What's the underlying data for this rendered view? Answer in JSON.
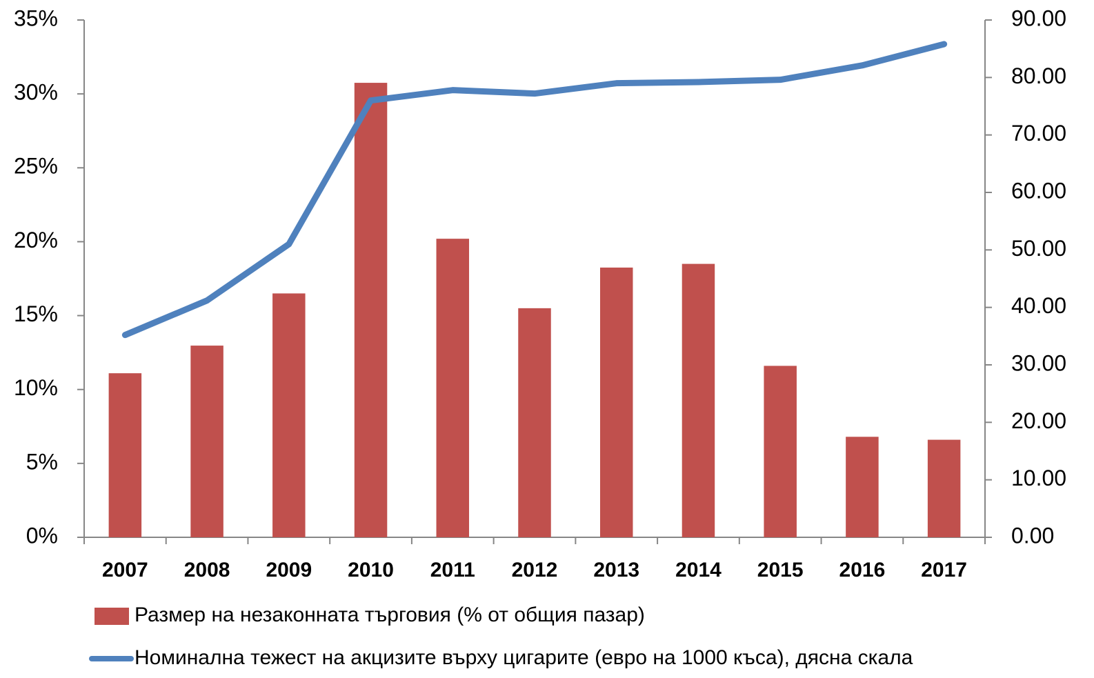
{
  "chart_data": {
    "type": "bar-line",
    "categories": [
      "2007",
      "2008",
      "2009",
      "2010",
      "2011",
      "2012",
      "2013",
      "2014",
      "2015",
      "2016",
      "2017"
    ],
    "series": [
      {
        "name": "Размер на незаконната търговия (% от общия пазар)",
        "type": "bar",
        "color": "#c0504d",
        "values": [
          11.1,
          12.97,
          16.5,
          30.75,
          20.2,
          15.5,
          18.25,
          18.5,
          11.6,
          6.8,
          6.6
        ]
      },
      {
        "name": "Номинална тежест на акцизите върху цигарите (евро на 1000 къса), дясна скала",
        "type": "line",
        "axis": "y2",
        "color": "#4f81bd",
        "values": [
          35.2,
          41.2,
          51.0,
          76.0,
          77.8,
          77.2,
          79.0,
          79.2,
          79.6,
          82.1,
          85.8
        ]
      }
    ],
    "ylim": [
      0,
      35
    ],
    "yticks": [
      {
        "value": 0,
        "label": "0%"
      },
      {
        "value": 5,
        "label": "5%"
      },
      {
        "value": 10,
        "label": "10%"
      },
      {
        "value": 15,
        "label": "15%"
      },
      {
        "value": 20,
        "label": "20%"
      },
      {
        "value": 25,
        "label": "25%"
      },
      {
        "value": 30,
        "label": "30%"
      },
      {
        "value": 35,
        "label": "35%"
      }
    ],
    "y2lim": [
      0,
      90
    ],
    "y2ticks": [
      {
        "value": 0,
        "label": "0.00"
      },
      {
        "value": 10,
        "label": "10.00"
      },
      {
        "value": 20,
        "label": "20.00"
      },
      {
        "value": 30,
        "label": "30.00"
      },
      {
        "value": 40,
        "label": "40.00"
      },
      {
        "value": 50,
        "label": "50.00"
      },
      {
        "value": 60,
        "label": "60.00"
      },
      {
        "value": 70,
        "label": "70.00"
      },
      {
        "value": 80,
        "label": "80.00"
      },
      {
        "value": 90,
        "label": "90.00"
      }
    ],
    "grid": false,
    "legend": "bottom"
  }
}
